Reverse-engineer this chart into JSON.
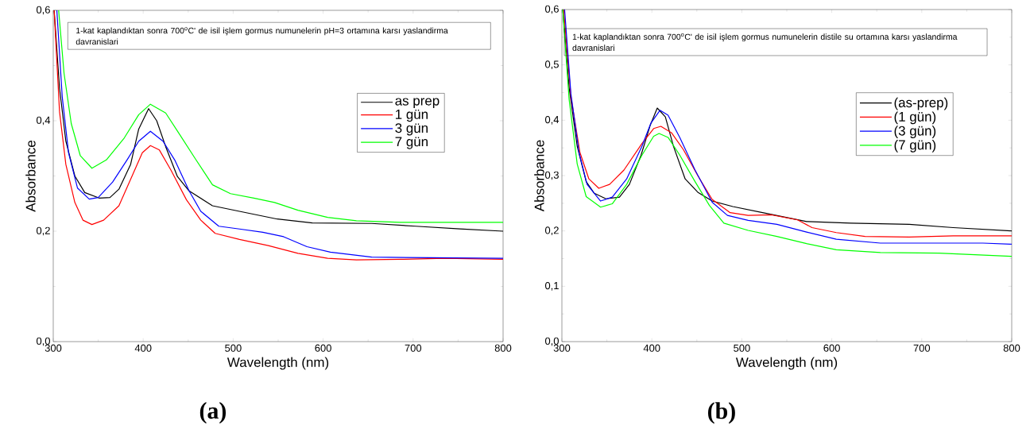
{
  "chart_data": [
    {
      "type": "line",
      "title": "1-kat kaplandıktan sonra 700$^{o}$C' de isil işlem gormus numunelerin pH=3 ortamına karsı yaslandirma davranislari",
      "xlabel": "Wavelength (nm)",
      "ylabel": "Absorbance",
      "xlim": [
        300,
        800
      ],
      "ylim": [
        0,
        0.6
      ],
      "xticks": [
        300,
        400,
        500,
        600,
        700,
        800
      ],
      "yticks": [
        {
          "value": 0,
          "label": "0,0"
        },
        {
          "value": 0.2,
          "label": "0,2"
        },
        {
          "value": 0.4,
          "label": "0,4"
        },
        {
          "value": 0.6,
          "label": "0,6"
        }
      ],
      "legend": "right",
      "marker": "none",
      "annotations": [
        "(a)"
      ],
      "series": [
        {
          "name": "as prep",
          "color": "#000000",
          "x": [
            301,
            307,
            314,
            324,
            335,
            351,
            363,
            373,
            386,
            395,
            406,
            415,
            425,
            438,
            451,
            477,
            507,
            549,
            588,
            654,
            703,
            752,
            800
          ],
          "values": [
            0.6,
            0.459,
            0.363,
            0.3,
            0.27,
            0.26,
            0.261,
            0.276,
            0.321,
            0.385,
            0.422,
            0.4,
            0.353,
            0.299,
            0.273,
            0.246,
            0.236,
            0.222,
            0.215,
            0.214,
            0.209,
            0.204,
            0.2
          ]
        },
        {
          "name": "1 gün",
          "color": "#ff0000",
          "x": [
            301,
            307,
            314,
            324,
            333,
            343,
            356,
            373,
            389,
            399,
            408,
            418,
            431,
            448,
            464,
            480,
            507,
            539,
            572,
            605,
            637,
            686,
            735,
            800
          ],
          "values": [
            0.6,
            0.416,
            0.321,
            0.252,
            0.22,
            0.212,
            0.22,
            0.246,
            0.305,
            0.342,
            0.355,
            0.347,
            0.31,
            0.257,
            0.22,
            0.196,
            0.185,
            0.174,
            0.16,
            0.151,
            0.148,
            0.149,
            0.151,
            0.149
          ]
        },
        {
          "name": "3 gün",
          "color": "#0000ff",
          "x": [
            304,
            310,
            317,
            327,
            340,
            350,
            366,
            382,
            395,
            408,
            422,
            435,
            451,
            464,
            484,
            507,
            533,
            556,
            582,
            608,
            654,
            719,
            800
          ],
          "values": [
            0.6,
            0.443,
            0.342,
            0.278,
            0.258,
            0.261,
            0.289,
            0.329,
            0.363,
            0.381,
            0.363,
            0.329,
            0.273,
            0.236,
            0.209,
            0.204,
            0.198,
            0.19,
            0.172,
            0.162,
            0.153,
            0.152,
            0.151
          ]
        },
        {
          "name": "7 gün",
          "color": "#00ff00",
          "x": [
            306,
            312,
            320,
            330,
            343,
            359,
            379,
            395,
            408,
            425,
            441,
            458,
            477,
            497,
            523,
            546,
            572,
            605,
            637,
            686,
            752,
            800
          ],
          "values": [
            0.6,
            0.486,
            0.395,
            0.337,
            0.314,
            0.329,
            0.369,
            0.411,
            0.43,
            0.414,
            0.374,
            0.331,
            0.284,
            0.268,
            0.26,
            0.252,
            0.238,
            0.225,
            0.219,
            0.216,
            0.216,
            0.216
          ]
        }
      ]
    },
    {
      "type": "line",
      "title": "1-kat kaplandıktan sonra 700$^{o}$C' de isil işlem gormus numunelerin distile su ortamına karsı yaslandirma davranislari",
      "xlabel": "Wavelength (nm)",
      "ylabel": "Absorbance",
      "xlim": [
        300,
        800
      ],
      "ylim": [
        0,
        0.6
      ],
      "xticks": [
        300,
        400,
        500,
        600,
        700,
        800
      ],
      "yticks": [
        {
          "value": 0,
          "label": "0,0"
        },
        {
          "value": 0.1,
          "label": "0,1"
        },
        {
          "value": 0.2,
          "label": "0,2"
        },
        {
          "value": 0.3,
          "label": "0,3"
        },
        {
          "value": 0.4,
          "label": "0,4"
        },
        {
          "value": 0.5,
          "label": "0,5"
        },
        {
          "value": 0.6,
          "label": "0,6"
        }
      ],
      "legend": "right",
      "marker": "none",
      "annotations": [
        "(b)"
      ],
      "series": [
        {
          "name": "(as-prep)",
          "color": "#000000",
          "x": [
            301,
            308,
            317,
            327,
            336,
            349,
            364,
            375,
            388,
            398,
            406,
            415,
            424,
            437,
            451,
            467,
            490,
            523,
            572,
            621,
            686,
            735,
            800
          ],
          "values": [
            0.6,
            0.459,
            0.353,
            0.289,
            0.268,
            0.258,
            0.261,
            0.284,
            0.337,
            0.39,
            0.422,
            0.406,
            0.353,
            0.294,
            0.27,
            0.254,
            0.244,
            0.233,
            0.217,
            0.214,
            0.212,
            0.206,
            0.2
          ]
        },
        {
          "name": "(1 gün)",
          "color": "#ff0000",
          "x": [
            302,
            310,
            320,
            330,
            341,
            353,
            369,
            389,
            402,
            410,
            422,
            435,
            451,
            467,
            487,
            507,
            533,
            562,
            578,
            605,
            637,
            686,
            735,
            800
          ],
          "values": [
            0.6,
            0.443,
            0.342,
            0.294,
            0.277,
            0.284,
            0.31,
            0.358,
            0.385,
            0.389,
            0.377,
            0.347,
            0.3,
            0.257,
            0.233,
            0.228,
            0.229,
            0.22,
            0.206,
            0.197,
            0.19,
            0.189,
            0.191,
            0.191
          ]
        },
        {
          "name": "(3 gün)",
          "color": "#0000ff",
          "x": [
            303,
            310,
            319,
            328,
            343,
            356,
            372,
            389,
            399,
            409,
            418,
            431,
            448,
            467,
            484,
            507,
            539,
            572,
            605,
            654,
            719,
            768,
            800
          ],
          "values": [
            0.6,
            0.448,
            0.342,
            0.284,
            0.254,
            0.261,
            0.294,
            0.353,
            0.395,
            0.418,
            0.409,
            0.369,
            0.31,
            0.252,
            0.228,
            0.219,
            0.212,
            0.198,
            0.185,
            0.178,
            0.178,
            0.178,
            0.176
          ]
        },
        {
          "name": "(7 gün)",
          "color": "#00ff00",
          "x": [
            301,
            308,
            317,
            327,
            343,
            356,
            372,
            389,
            402,
            408,
            418,
            431,
            448,
            464,
            480,
            507,
            539,
            572,
            605,
            654,
            719,
            800
          ],
          "values": [
            0.6,
            0.438,
            0.321,
            0.262,
            0.243,
            0.249,
            0.284,
            0.337,
            0.371,
            0.376,
            0.369,
            0.337,
            0.289,
            0.246,
            0.214,
            0.201,
            0.19,
            0.177,
            0.166,
            0.161,
            0.16,
            0.154
          ]
        }
      ]
    }
  ]
}
